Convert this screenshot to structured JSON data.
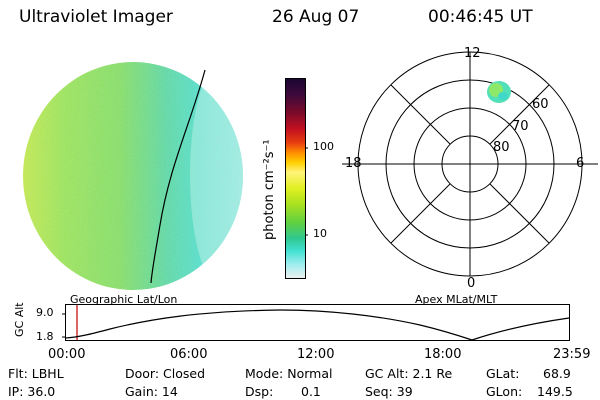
{
  "header": {
    "title": "Ultraviolet Imager",
    "date": "26 Aug 07",
    "time": "00:46:45 UT"
  },
  "colorbar": {
    "unit_label": "photon cm⁻²s⁻¹",
    "tick_labels": [
      "100",
      "10"
    ],
    "colors_top_to_bottom": [
      "#1a0630",
      "#3c0a3c",
      "#7a0a2a",
      "#c01020",
      "#e83c10",
      "#ff8c00",
      "#ffd000",
      "#fff37a",
      "#e0f020",
      "#a8e020",
      "#60d040",
      "#30c890",
      "#40e0d0",
      "#a0eef0",
      "#f0f0f0"
    ]
  },
  "image_panel": {
    "caption": "Geographic Lat/Lon",
    "palette": {
      "green": "#8ee86a",
      "yellow_green": "#c8f04c",
      "cyan": "#52e6cf"
    }
  },
  "polar_panel": {
    "caption": "Apex MLat/MLT",
    "mlt_labels": {
      "top": "12",
      "left": "18",
      "right": "6",
      "bottom": "0"
    },
    "lat_labels": [
      "60",
      "70",
      "80"
    ]
  },
  "altitude_plot": {
    "ylabel": "GC Alt",
    "y_ticks": [
      "9.0",
      "1.8"
    ],
    "x_ticks": [
      "00:00",
      "06:00",
      "12:00",
      "18:00",
      "23:59"
    ],
    "marker_color": "#c00000"
  },
  "info": {
    "flt": "Flt: LBHL",
    "ip": "IP: 36.0",
    "door": "Door: Closed",
    "gain": "Gain: 14",
    "mode": "Mode: Normal",
    "dsp_label": "Dsp:",
    "dsp_value": "0.1",
    "gc_alt": "GC Alt: 2.1 Re",
    "seq": "Seq: 39",
    "glat_label": "GLat:",
    "glat_value": "68.9",
    "glon_label": "GLon:",
    "glon_value": "149.5"
  }
}
